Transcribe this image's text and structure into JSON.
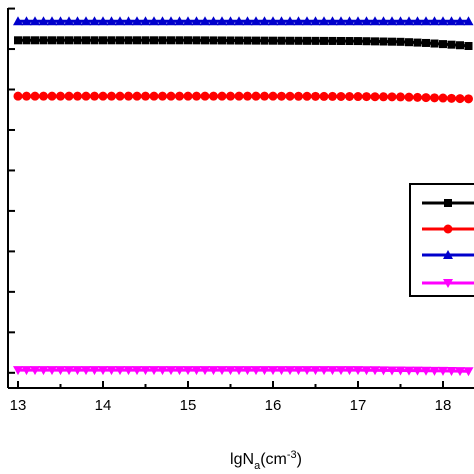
{
  "chart_data": {
    "type": "line",
    "xlabel": "lgN",
    "xlabel_sub": "a",
    "xlabel_unit_prefix": "(cm",
    "xlabel_unit_sup": "-3",
    "xlabel_unit_suffix": ")",
    "xlim": [
      12.92,
      18.3
    ],
    "x_ticks": [
      "13",
      "14",
      "15",
      "16",
      "17",
      "18"
    ],
    "ylim": [
      0,
      1
    ],
    "y_tick_values": [
      0.04,
      0.1465,
      0.253,
      0.3595,
      0.466,
      0.5725,
      0.679,
      0.7855,
      0.892,
      0.9985
    ],
    "legend_position": "right",
    "series": [
      {
        "color": "#000000",
        "marker": "square",
        "x": [
          13.0,
          14.0,
          15.0,
          16.0,
          17.0,
          17.5,
          17.8,
          18.0,
          18.2,
          18.3
        ],
        "y": [
          0.915,
          0.915,
          0.915,
          0.914,
          0.913,
          0.911,
          0.908,
          0.905,
          0.902,
          0.9
        ]
      },
      {
        "color": "#ff0000",
        "marker": "circle",
        "x": [
          13.0,
          14.0,
          15.0,
          16.0,
          17.0,
          17.5,
          18.0,
          18.3
        ],
        "y": [
          0.768,
          0.768,
          0.768,
          0.768,
          0.767,
          0.766,
          0.763,
          0.761
        ]
      },
      {
        "color": "#0000cc",
        "marker": "triangle-up",
        "x": [
          13.0,
          14.0,
          15.0,
          16.0,
          17.0,
          18.0,
          18.3
        ],
        "y": [
          0.965,
          0.965,
          0.965,
          0.965,
          0.965,
          0.965,
          0.965
        ]
      },
      {
        "color": "#ff00ff",
        "marker": "triangle-down",
        "x": [
          13.0,
          14.0,
          15.0,
          16.0,
          17.0,
          17.5,
          18.0,
          18.3
        ],
        "y": [
          0.047,
          0.047,
          0.047,
          0.047,
          0.047,
          0.046,
          0.045,
          0.044
        ]
      }
    ]
  }
}
